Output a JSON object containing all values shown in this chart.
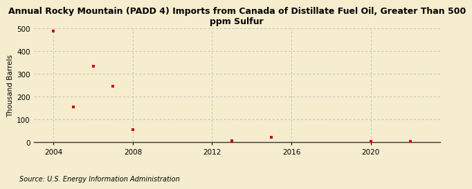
{
  "title": "Annual Rocky Mountain (PADD 4) Imports from Canada of Distillate Fuel Oil, Greater Than 500\nppm Sulfur",
  "ylabel": "Thousand Barrels",
  "source": "Source: U.S. Energy Information Administration",
  "background_color": "#f5edce",
  "data_color": "#cc0000",
  "marker": "s",
  "marker_size": 3.5,
  "xlim": [
    2003.0,
    2023.5
  ],
  "ylim": [
    0,
    500
  ],
  "yticks": [
    0,
    100,
    200,
    300,
    400,
    500
  ],
  "xticks": [
    2004,
    2008,
    2012,
    2016,
    2020
  ],
  "grid_color": "#bbbbbb",
  "years": [
    2004,
    2005,
    2006,
    2007,
    2008,
    2013,
    2015,
    2020,
    2022
  ],
  "values": [
    490,
    155,
    335,
    245,
    55,
    8,
    22,
    3,
    5
  ]
}
